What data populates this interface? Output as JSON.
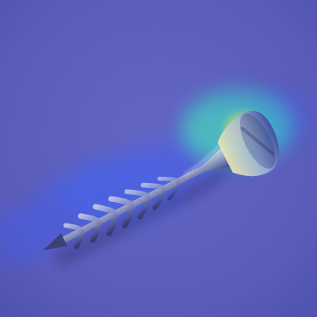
{
  "image": {
    "subject": "screw",
    "icon": "screw-icon",
    "overlay": "heatmap",
    "colors": {
      "background": "#5a5cb8",
      "heat_cool": "#3b5cff",
      "heat_warm": "#38d8c8",
      "heat_hot": "#f2e24a",
      "metal_light": "#c7cbd8",
      "metal_dark": "#3b3f73"
    }
  }
}
